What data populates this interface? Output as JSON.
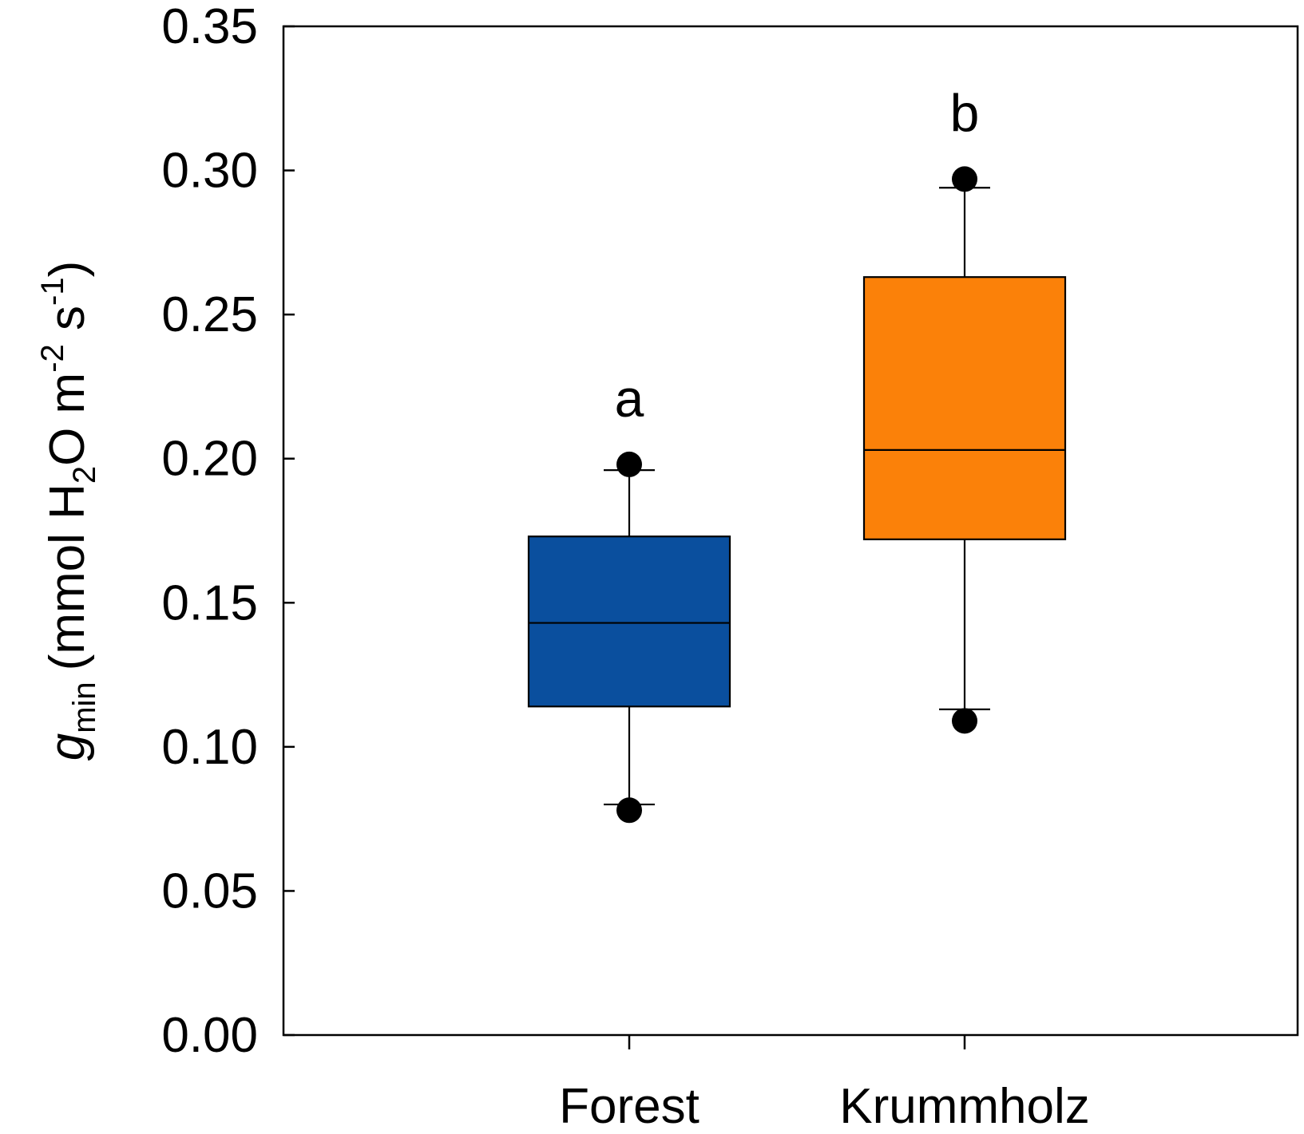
{
  "chart_data": {
    "type": "box",
    "ylabel": {
      "main": "g",
      "main_sub": "min",
      "unit_open": "(mmol H",
      "unit_sub": "2",
      "unit_mid": "O m",
      "unit_sup1": "-2",
      "unit_s": " s",
      "unit_sup2": "-1",
      "unit_close": ")"
    },
    "ylim": [
      0,
      0.35
    ],
    "yticks": [
      "0.00",
      "0.05",
      "0.10",
      "0.15",
      "0.20",
      "0.25",
      "0.30",
      "0.35"
    ],
    "categories": [
      "Forest",
      "Krummholz"
    ],
    "boxes": [
      {
        "category": "Forest",
        "color": "#0a4f9e",
        "whisker_low": 0.08,
        "q1": 0.114,
        "median": 0.143,
        "q3": 0.173,
        "whisker_high": 0.196,
        "outliers": [
          0.078,
          0.198
        ],
        "significance": "a"
      },
      {
        "category": "Krummholz",
        "color": "#fb8109",
        "whisker_low": 0.113,
        "q1": 0.172,
        "median": 0.203,
        "q3": 0.263,
        "whisker_high": 0.294,
        "outliers": [
          0.109,
          0.297
        ],
        "significance": "b"
      }
    ],
    "grid": false,
    "legend": "none"
  }
}
